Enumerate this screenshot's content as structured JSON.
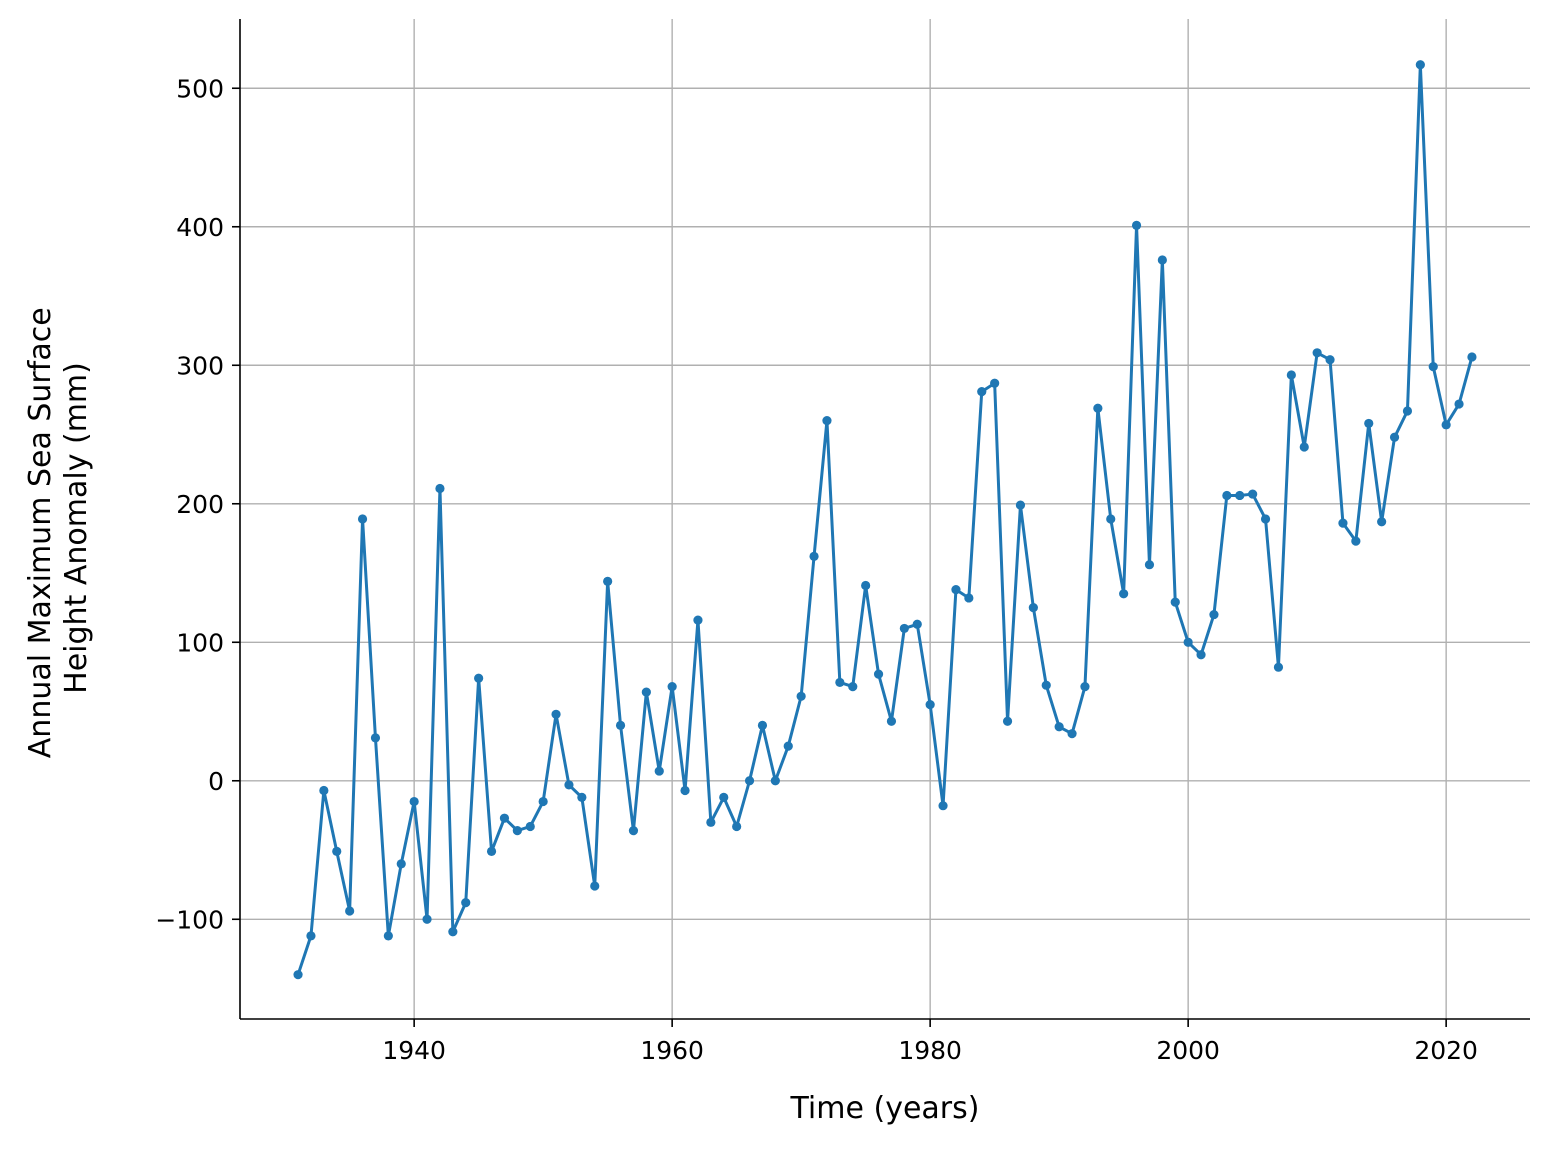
{
  "chart_data": {
    "type": "line",
    "title": "",
    "xlabel": "Time (years)",
    "ylabel": [
      "Annual Maximum Sea Surface",
      "Height Anomaly (mm)"
    ],
    "xlim": [
      1926.5,
      2026.5
    ],
    "ylim": [
      -172,
      550
    ],
    "xticks": [
      1940,
      1960,
      1980,
      2000,
      2020
    ],
    "yticks": [
      -100,
      0,
      100,
      200,
      300,
      400,
      500
    ],
    "ytick_labels": [
      "−100",
      "0",
      "100",
      "200",
      "300",
      "400",
      "500"
    ],
    "grid": true,
    "legend": "none",
    "series": [
      {
        "color": "#1f77b4",
        "marker": "circle",
        "x": [
          1931,
          1932,
          1933,
          1934,
          1935,
          1936,
          1937,
          1938,
          1939,
          1940,
          1941,
          1942,
          1943,
          1944,
          1945,
          1946,
          1947,
          1948,
          1949,
          1950,
          1951,
          1952,
          1953,
          1954,
          1955,
          1956,
          1957,
          1958,
          1959,
          1960,
          1961,
          1962,
          1963,
          1964,
          1965,
          1966,
          1967,
          1968,
          1969,
          1970,
          1971,
          1972,
          1973,
          1974,
          1975,
          1976,
          1977,
          1978,
          1979,
          1980,
          1981,
          1982,
          1983,
          1984,
          1985,
          1986,
          1987,
          1988,
          1989,
          1990,
          1991,
          1992,
          1993,
          1994,
          1995,
          1996,
          1997,
          1998,
          1999,
          2000,
          2001,
          2002,
          2003,
          2004,
          2005,
          2006,
          2007,
          2008,
          2009,
          2010,
          2011,
          2012,
          2013,
          2014,
          2015,
          2016,
          2017,
          2018,
          2019,
          2020,
          2021,
          2022
        ],
        "y": [
          -140,
          -112,
          -7,
          -51,
          -94,
          189,
          31,
          -112,
          -60,
          -15,
          -100,
          211,
          -109,
          -88,
          74,
          -51,
          -27,
          -36,
          -33,
          -15,
          48,
          -3,
          -12,
          -76,
          144,
          40,
          -36,
          64,
          7,
          68,
          -7,
          116,
          -30,
          -12,
          -33,
          0,
          40,
          0,
          25,
          61,
          162,
          260,
          71,
          68,
          141,
          77,
          43,
          110,
          113,
          55,
          -18,
          138,
          132,
          281,
          287,
          43,
          199,
          125,
          69,
          39,
          34,
          68,
          269,
          189,
          135,
          401,
          156,
          376,
          129,
          100,
          91,
          120,
          206,
          206,
          207,
          189,
          82,
          293,
          241,
          309,
          304,
          186,
          173,
          258,
          187,
          248,
          267,
          517,
          299,
          257,
          272,
          306
        ]
      }
    ]
  }
}
